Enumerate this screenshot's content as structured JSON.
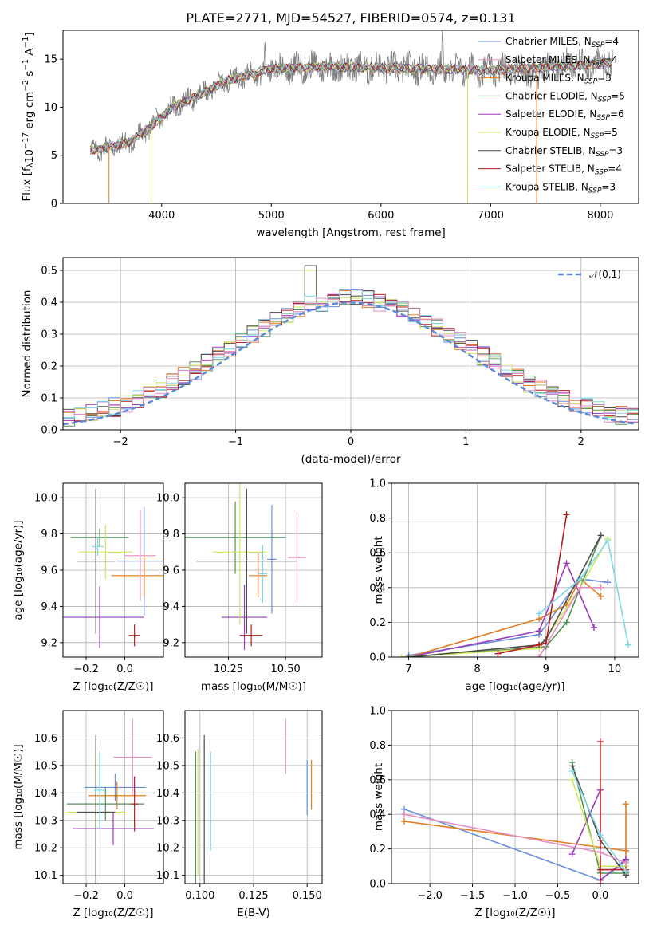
{
  "figure_title": "PLATE=2771, MJD=54527, FIBERID=0574, z=0.131",
  "colors": [
    "#6a8fdc",
    "#e47c20",
    "#54915a",
    "#9b3bbe",
    "#cde85e",
    "#4c4c4c",
    "#b51e1e",
    "#7fd8e6",
    "#e58dc0"
  ],
  "spectrum_model_colors": [
    "#6a8fdc",
    "#e58dc0",
    "#e47c20",
    "#54915a",
    "#9b3bbe",
    "#cde85e",
    "#4c4c4c",
    "#b51e1e",
    "#7fd8e6"
  ],
  "legend_spec": [
    "Chabrier MILES, N",
    "Salpeter MILES, N",
    "Kroupa MILES, N",
    "Chabrier ELODIE, N",
    "Salpeter ELODIE, N",
    "Kroupa ELODIE, N",
    "Chabrier STELIB, N",
    "Salpeter STELIB, N",
    "Kroupa STELIB, N"
  ],
  "legend_sub": "SSP",
  "legend_vals": [
    "=4",
    "=4",
    "=3",
    "=5",
    "=6",
    "=5",
    "=3",
    "=4",
    "=3"
  ],
  "chart_data": [
    {
      "id": "spectrum",
      "type": "line",
      "xlabel": "wavelength [Angstrom, rest frame]",
      "ylabel_parts": [
        "Flux [f",
        "λ",
        "10",
        "−17",
        " erg cm",
        "−2",
        " s",
        "−1",
        " A",
        "−1",
        "]"
      ],
      "xlim": [
        3100,
        8350
      ],
      "ylim": [
        0,
        18
      ],
      "xticks": [
        4000,
        5000,
        6000,
        7000,
        8000
      ],
      "yticks": [
        0,
        5,
        10,
        15
      ],
      "continuum": {
        "x": [
          3350,
          3500,
          3700,
          3900,
          4100,
          4300,
          4600,
          5000,
          5500,
          6000,
          6500,
          7000,
          7500,
          8000,
          8100
        ],
        "y": [
          5.5,
          5.8,
          6.3,
          8,
          10,
          11,
          12.8,
          14,
          14.2,
          14.1,
          14,
          13.8,
          14.2,
          14.5,
          14.6
        ]
      }
    },
    {
      "id": "residuals",
      "type": "step",
      "xlabel": "(data-model)/error",
      "ylabel": "Normed distribution",
      "xlim": [
        -2.5,
        2.5
      ],
      "ylim": [
        0,
        0.54
      ],
      "xticks": [
        -2,
        -1,
        0,
        1,
        2
      ],
      "xticklabels": [
        "−2",
        "−1",
        "0",
        "1",
        "2"
      ],
      "yticks": [
        0,
        0.1,
        0.2,
        0.3,
        0.4,
        0.5
      ],
      "yticklabels": [
        "0.0",
        "0.1",
        "0.2",
        "0.3",
        "0.4",
        "0.5"
      ],
      "legend": "𝒩(0,1)",
      "gauss_sigma": 1
    },
    {
      "id": "age_vs_Z",
      "type": "errorbar",
      "xlabel": "Z [log₁₀(Z/Z☉)]",
      "ylabel": "age  [log₁₀(age/yr)]",
      "xlim": [
        -0.32,
        0.2
      ],
      "ylim": [
        9.12,
        10.08
      ],
      "xticks": [
        -0.2,
        0.0
      ],
      "xticklabels": [
        "−0.2",
        "0.0"
      ],
      "yticks": [
        9.2,
        9.4,
        9.6,
        9.8,
        10.0
      ],
      "yticklabels": [
        "9.2",
        "9.4",
        "9.6",
        "9.8",
        "10.0"
      ],
      "points": [
        {
          "x": 0.1,
          "y": 9.65,
          "xerr": 0.14,
          "yerr": 0.3,
          "c": 0
        },
        {
          "x": 0.1,
          "y": 9.57,
          "xerr": 0.17,
          "yerr": 0.12,
          "c": 1
        },
        {
          "x": -0.13,
          "y": 9.78,
          "xerr": 0.15,
          "yerr": 0.05,
          "c": 2
        },
        {
          "x": -0.13,
          "y": 9.34,
          "xerr": 0.23,
          "yerr": 0.17,
          "c": 3
        },
        {
          "x": -0.1,
          "y": 9.7,
          "xerr": 0.14,
          "yerr": 0.15,
          "c": 4
        },
        {
          "x": -0.15,
          "y": 9.65,
          "xerr": 0.1,
          "yerr": 0.4,
          "c": 5
        },
        {
          "x": 0.05,
          "y": 9.24,
          "xerr": 0.03,
          "yerr": 0.06,
          "c": 6
        },
        {
          "x": -0.14,
          "y": 9.73,
          "xerr": 0.03,
          "yerr": 0.05,
          "c": 7
        },
        {
          "x": 0.08,
          "y": 9.68,
          "xerr": 0.08,
          "yerr": 0.25,
          "c": 8
        }
      ]
    },
    {
      "id": "age_vs_mass",
      "type": "errorbar",
      "xlabel": "mass [log₁₀(M/M☉)]",
      "xlim": [
        10.06,
        10.66
      ],
      "ylim": [
        9.12,
        10.08
      ],
      "xticks": [
        10.25,
        10.5
      ],
      "xticklabels": [
        "10.25",
        "10.50"
      ],
      "yticks": [
        9.2,
        9.4,
        9.6,
        9.8,
        10.0
      ],
      "yticklabels": [
        "9.2",
        "9.4",
        "9.6",
        "9.8",
        "10.0"
      ],
      "points": [
        {
          "x": 10.44,
          "y": 9.66,
          "xerr": 0.02,
          "yerr": 0.3,
          "c": 0
        },
        {
          "x": 10.38,
          "y": 9.57,
          "xerr": 0.04,
          "yerr": 0.12,
          "c": 1
        },
        {
          "x": 10.28,
          "y": 9.78,
          "xerr": 0.22,
          "yerr": 0.2,
          "c": 2
        },
        {
          "x": 10.32,
          "y": 9.34,
          "xerr": 0.1,
          "yerr": 0.18,
          "c": 3
        },
        {
          "x": 10.3,
          "y": 9.7,
          "xerr": 0.12,
          "yerr": 0.4,
          "c": 4
        },
        {
          "x": 10.33,
          "y": 9.65,
          "xerr": 0.22,
          "yerr": 0.4,
          "c": 5
        },
        {
          "x": 10.35,
          "y": 9.24,
          "xerr": 0.05,
          "yerr": 0.06,
          "c": 6
        },
        {
          "x": 10.4,
          "y": 9.58,
          "xerr": 0.02,
          "yerr": 0.16,
          "c": 7
        },
        {
          "x": 10.55,
          "y": 9.67,
          "xerr": 0.04,
          "yerr": 0.25,
          "c": 8
        }
      ]
    },
    {
      "id": "weights_vs_age",
      "type": "line",
      "xlabel": "age  [log₁₀(age/yr)]",
      "ylabel": "mass weight",
      "xlim": [
        6.75,
        10.35
      ],
      "ylim": [
        0,
        1
      ],
      "xticks": [
        7,
        8,
        9,
        10
      ],
      "xticklabels": [
        "7",
        "8",
        "9",
        "10"
      ],
      "yticks": [
        0,
        0.2,
        0.4,
        0.6,
        0.8,
        1.0
      ],
      "yticklabels": [
        "0.0",
        "0.2",
        "0.4",
        "0.6",
        "0.8",
        "1.0"
      ],
      "series": [
        {
          "c": 0,
          "x": [
            7.0,
            8.9,
            9.5,
            9.9
          ],
          "y": [
            0.01,
            0.13,
            0.45,
            0.43
          ]
        },
        {
          "c": 1,
          "x": [
            7.0,
            8.9,
            9.3,
            9.5,
            9.8
          ],
          "y": [
            0.0,
            0.22,
            0.3,
            0.45,
            0.35
          ]
        },
        {
          "c": 2,
          "x": [
            7.0,
            9.0,
            9.3,
            9.8
          ],
          "y": [
            0.0,
            0.06,
            0.2,
            0.7
          ]
        },
        {
          "c": 3,
          "x": [
            7.0,
            8.9,
            9.3,
            9.7
          ],
          "y": [
            0.0,
            0.15,
            0.54,
            0.17
          ]
        },
        {
          "c": 4,
          "x": [
            6.9,
            8.9,
            9.5,
            9.9
          ],
          "y": [
            0.0,
            0.05,
            0.4,
            0.68
          ]
        },
        {
          "c": 5,
          "x": [
            7.0,
            8.9,
            9.0,
            9.8
          ],
          "y": [
            0.0,
            0.07,
            0.1,
            0.7
          ]
        },
        {
          "c": 6,
          "x": [
            8.3,
            8.9,
            9.0,
            9.3
          ],
          "y": [
            0.02,
            0.07,
            0.08,
            0.82
          ]
        },
        {
          "c": 7,
          "x": [
            8.9,
            9.5,
            9.9,
            10.2
          ],
          "y": [
            0.25,
            0.45,
            0.67,
            0.07
          ]
        },
        {
          "c": 8,
          "x": [
            8.9,
            9.5,
            9.8
          ],
          "y": [
            0.0,
            0.4,
            0.4
          ]
        }
      ]
    },
    {
      "id": "mass_vs_Z",
      "type": "errorbar",
      "xlabel": "Z [log₁₀(Z/Z☉)]",
      "ylabel": "mass [log₁₀(M/M☉)]",
      "xlim": [
        -0.32,
        0.2
      ],
      "ylim": [
        10.07,
        10.7
      ],
      "xticks": [
        -0.2,
        0.0
      ],
      "xticklabels": [
        "−0.2",
        "0.0"
      ],
      "yticks": [
        10.1,
        10.2,
        10.3,
        10.4,
        10.5,
        10.6
      ],
      "yticklabels": [
        "10.1",
        "10.2",
        "10.3",
        "10.4",
        "10.5",
        "10.6"
      ],
      "points": [
        {
          "x": -0.05,
          "y": 10.42,
          "xerr": 0.16,
          "yerr": 0.05,
          "c": 0
        },
        {
          "x": -0.04,
          "y": 10.39,
          "xerr": 0.15,
          "yerr": 0.05,
          "c": 1
        },
        {
          "x": -0.1,
          "y": 10.36,
          "xerr": 0.2,
          "yerr": 0.06,
          "c": 2
        },
        {
          "x": -0.06,
          "y": 10.27,
          "xerr": 0.21,
          "yerr": 0.06,
          "c": 3
        },
        {
          "x": -0.15,
          "y": 10.33,
          "xerr": 0.15,
          "yerr": 0.23,
          "c": 4
        },
        {
          "x": -0.15,
          "y": 10.33,
          "xerr": 0.1,
          "yerr": 0.28,
          "c": 5
        },
        {
          "x": 0.05,
          "y": 10.36,
          "xerr": 0.02,
          "yerr": 0.1,
          "c": 6
        },
        {
          "x": -0.13,
          "y": 10.41,
          "xerr": 0.03,
          "yerr": 0.14,
          "c": 7
        },
        {
          "x": 0.04,
          "y": 10.53,
          "xerr": 0.1,
          "yerr": 0.14,
          "c": 8
        }
      ]
    },
    {
      "id": "mass_vs_ebv",
      "type": "errorbar",
      "xlabel": "E(B-V)",
      "xlim": [
        0.093,
        0.157
      ],
      "ylim": [
        10.07,
        10.7
      ],
      "xticks": [
        0.1,
        0.125,
        0.15
      ],
      "xticklabels": [
        "0.100",
        "0.125",
        "0.150"
      ],
      "yticks": [
        10.1,
        10.2,
        10.3,
        10.4,
        10.5,
        10.6
      ],
      "yticklabels": [
        "10.1",
        "10.2",
        "10.3",
        "10.4",
        "10.5",
        "10.6"
      ],
      "points": [
        {
          "x": 0.15,
          "y": 10.42,
          "xerr": 0,
          "yerr": 0.1,
          "c": 0
        },
        {
          "x": 0.152,
          "y": 10.43,
          "xerr": 0,
          "yerr": 0.09,
          "c": 1
        },
        {
          "x": 0.098,
          "y": 10.31,
          "xerr": 0,
          "yerr": 0.24,
          "c": 2
        },
        {
          "x": 0.099,
          "y": 10.33,
          "xerr": 0,
          "yerr": 0.23,
          "c": 4
        },
        {
          "x": 0.102,
          "y": 10.34,
          "xerr": 0,
          "yerr": 0.27,
          "c": 5
        },
        {
          "x": 0.105,
          "y": 10.37,
          "xerr": 0,
          "yerr": 0.18,
          "c": 7
        },
        {
          "x": 0.14,
          "y": 10.57,
          "xerr": 0,
          "yerr": 0.1,
          "c": 8
        }
      ]
    },
    {
      "id": "weights_vs_Z",
      "type": "line",
      "xlabel": "Z [log₁₀(Z/Z☉)]",
      "ylabel": "mass weight",
      "xlim": [
        -2.45,
        0.45
      ],
      "ylim": [
        0,
        1
      ],
      "xticks": [
        -2.0,
        -1.5,
        -1.0,
        -0.5,
        0.0
      ],
      "xticklabels": [
        "−2.0",
        "−1.5",
        "−1.0",
        "−0.5",
        "0.0"
      ],
      "yticks": [
        0,
        0.2,
        0.4,
        0.6,
        0.8,
        1.0
      ],
      "yticklabels": [
        "0.0",
        "0.2",
        "0.4",
        "0.6",
        "0.8",
        "1.0"
      ],
      "series": [
        {
          "c": 0,
          "x": [
            -2.3,
            0.0,
            0.3
          ],
          "y": [
            0.43,
            0.02,
            0.13
          ]
        },
        {
          "c": 1,
          "x": [
            -2.3,
            0.3,
            0.3,
            0.3
          ],
          "y": [
            0.36,
            0.19,
            0.46,
            0.05
          ]
        },
        {
          "c": 2,
          "x": [
            -0.33,
            0.0,
            0.3
          ],
          "y": [
            0.7,
            0.06,
            0.06
          ]
        },
        {
          "c": 3,
          "x": [
            -0.33,
            0.0,
            0.0,
            0.3
          ],
          "y": [
            0.17,
            0.54,
            0.02,
            0.14
          ]
        },
        {
          "c": 4,
          "x": [
            -0.33,
            0.0,
            0.3
          ],
          "y": [
            0.6,
            0.1,
            0.1
          ]
        },
        {
          "c": 5,
          "x": [
            -0.33,
            0.0,
            0.3
          ],
          "y": [
            0.68,
            0.25,
            0.05
          ]
        },
        {
          "c": 6,
          "x": [
            0.0,
            0.0,
            0.0,
            0.3
          ],
          "y": [
            0.82,
            0.0,
            0.08,
            0.08
          ]
        },
        {
          "c": 7,
          "x": [
            -0.33,
            0.0,
            0.3
          ],
          "y": [
            0.65,
            0.28,
            0.07
          ]
        },
        {
          "c": 8,
          "x": [
            -2.3,
            0.0,
            0.3
          ],
          "y": [
            0.4,
            0.18,
            0.12
          ]
        }
      ]
    }
  ]
}
